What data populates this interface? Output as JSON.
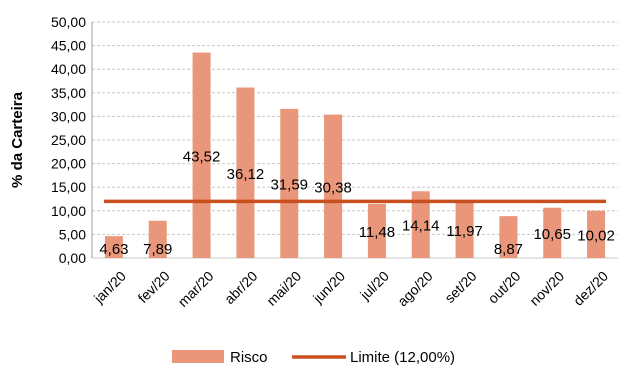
{
  "chart_data": {
    "type": "bar",
    "ylabel": "% da Carteira",
    "ylim": [
      0,
      50
    ],
    "ytick_step": 5,
    "yticks": [
      "0,00",
      "5,00",
      "10,00",
      "15,00",
      "20,00",
      "25,00",
      "30,00",
      "35,00",
      "40,00",
      "45,00",
      "50,00"
    ],
    "categories": [
      "jan/20",
      "fev/20",
      "mar/20",
      "abr/20",
      "mai/20",
      "jun/20",
      "jul/20",
      "ago/20",
      "set/20",
      "out/20",
      "nov/20",
      "dez/20"
    ],
    "series": [
      {
        "name": "Risco",
        "values": [
          4.63,
          7.89,
          43.52,
          36.12,
          31.59,
          30.38,
          11.48,
          14.14,
          11.97,
          8.87,
          10.65,
          10.02
        ],
        "labels": [
          "4,63",
          "7,89",
          "43,52",
          "36,12",
          "31,59",
          "30,38",
          "11,48",
          "14,14",
          "11,97",
          "8,87",
          "10,65",
          "10,02"
        ],
        "color": "#E9967A"
      }
    ],
    "reference_line": {
      "name": "Limite (12,00%)",
      "value": 12.0,
      "color": "#C8501E"
    },
    "grid": true,
    "legend": "bottom"
  }
}
